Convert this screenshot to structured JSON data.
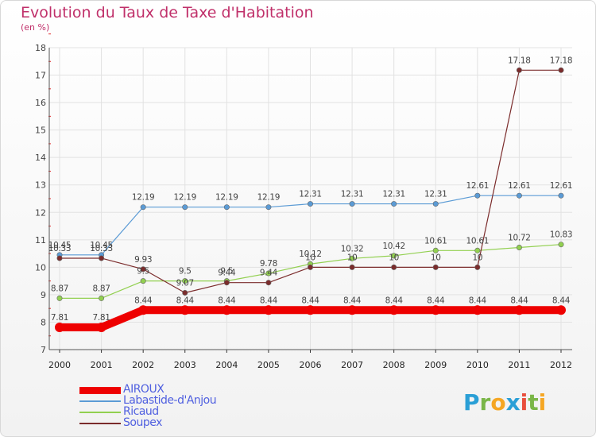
{
  "title": "Evolution du Taux de Taxe d'Habitation",
  "subtitle": "(en %)",
  "logo": {
    "letters": [
      {
        "ch": "P",
        "color": "#2a9fd6"
      },
      {
        "ch": "r",
        "color": "#7ab648"
      },
      {
        "ch": "o",
        "color": "#f5a623"
      },
      {
        "ch": "x",
        "color": "#2a9fd6"
      },
      {
        "ch": "i",
        "color": "#e94e3c"
      },
      {
        "ch": "t",
        "color": "#7ab648"
      },
      {
        "ch": "i",
        "color": "#f5a623"
      }
    ]
  },
  "chart_data": {
    "type": "line",
    "x": [
      "2000",
      "2001",
      "2002",
      "2003",
      "2004",
      "2005",
      "2006",
      "2007",
      "2008",
      "2009",
      "2010",
      "2011",
      "2012"
    ],
    "ylim": [
      7,
      18
    ],
    "yticks": [
      "7",
      "8",
      "9",
      "10",
      "11",
      "12",
      "13",
      "14",
      "15",
      "16",
      "17",
      "18"
    ],
    "grid": true,
    "legend_position": "bottom-left",
    "series": [
      {
        "name": "AIROUX",
        "color": "#ee0000",
        "width": 10,
        "values": [
          7.81,
          7.81,
          8.44,
          8.44,
          8.44,
          8.44,
          8.44,
          8.44,
          8.44,
          8.44,
          8.44,
          8.44,
          8.44
        ],
        "labels": [
          "7.81",
          "7.81",
          "8.44",
          "8.44",
          "8.44",
          "8.44",
          "8.44",
          "8.44",
          "8.44",
          "8.44",
          "8.44",
          "8.44",
          "8.44"
        ]
      },
      {
        "name": "Labastide-d'Anjou",
        "color": "#5b9bd5",
        "width": 1.2,
        "values": [
          10.45,
          10.45,
          12.19,
          12.19,
          12.19,
          12.19,
          12.31,
          12.31,
          12.31,
          12.31,
          12.61,
          12.61,
          12.61
        ],
        "labels": [
          "10.45",
          "10.45",
          "12.19",
          "12.19",
          "12.19",
          "12.19",
          "12.31",
          "12.31",
          "12.31",
          "12.31",
          "12.61",
          "12.61",
          "12.61"
        ]
      },
      {
        "name": "Ricaud",
        "color": "#92d050",
        "width": 1.2,
        "values": [
          8.87,
          8.87,
          9.5,
          9.5,
          9.5,
          9.78,
          10.12,
          10.32,
          10.42,
          10.61,
          10.61,
          10.72,
          10.83
        ],
        "labels": [
          "8.87",
          "8.87",
          "9.5",
          "9.5",
          "9.5",
          "9.78",
          "10.12",
          "10.32",
          "10.42",
          "10.61",
          "10.61",
          "10.72",
          "10.83"
        ]
      },
      {
        "name": "Soupex",
        "color": "#7b2c2c",
        "width": 1.2,
        "values": [
          10.33,
          10.33,
          9.93,
          9.07,
          9.44,
          9.44,
          10,
          10,
          10,
          10,
          10,
          17.18,
          17.18
        ],
        "labels": [
          "10.33",
          "10.33",
          "9.93",
          "9.07",
          "9.44",
          "9.44",
          "10",
          "10",
          "10",
          "10",
          "10",
          "17.18",
          "17.18"
        ]
      }
    ]
  }
}
